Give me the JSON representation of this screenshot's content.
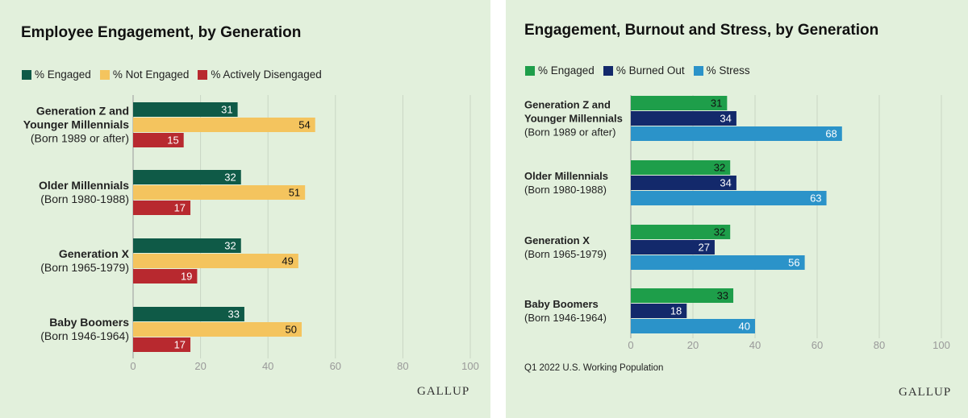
{
  "charts": [
    {
      "title": "Employee Engagement, by Generation",
      "logo": "GALLUP",
      "footnote": "",
      "chart_data": {
        "type": "bar",
        "orientation": "horizontal",
        "categories": [
          [
            "Generation Z and",
            "Younger Millennials",
            "(Born 1989 or after)"
          ],
          [
            "Older Millennials",
            "(Born 1980-1988)"
          ],
          [
            "Generation X",
            "(Born 1965-1979)"
          ],
          [
            "Baby Boomers",
            "(Born 1946-1964)"
          ]
        ],
        "series": [
          {
            "name": "% Engaged",
            "color": "#0f5a47",
            "label_color": "#ffffff",
            "values": [
              31,
              32,
              32,
              33
            ]
          },
          {
            "name": "% Not Engaged",
            "color": "#f4c45e",
            "label_color": "#111111",
            "values": [
              54,
              51,
              49,
              50
            ]
          },
          {
            "name": "% Actively Disengaged",
            "color": "#b8292f",
            "label_color": "#ffffff",
            "values": [
              15,
              17,
              19,
              17
            ]
          }
        ],
        "xlim": [
          0,
          100
        ],
        "xticks": [
          "0",
          "20",
          "40",
          "60",
          "80",
          "100"
        ],
        "grid": true,
        "legend": "top-left"
      }
    },
    {
      "title": "Engagement, Burnout and Stress, by Generation",
      "logo": "GALLUP",
      "footnote": "Q1 2022 U.S. Working Population",
      "chart_data": {
        "type": "bar",
        "orientation": "horizontal",
        "categories": [
          [
            "Generation Z and",
            "Younger Millennials",
            "(Born 1989 or after)"
          ],
          [
            "Older Millennials",
            "(Born 1980-1988)"
          ],
          [
            "Generation X",
            "(Born 1965-1979)"
          ],
          [
            "Baby Boomers",
            "(Born 1946-1964)"
          ]
        ],
        "series": [
          {
            "name": "% Engaged",
            "color": "#1e9e4a",
            "label_color": "#111111",
            "values": [
              31,
              32,
              32,
              33
            ]
          },
          {
            "name": "% Burned Out",
            "color": "#13296b",
            "label_color": "#ffffff",
            "values": [
              34,
              34,
              27,
              18
            ]
          },
          {
            "name": "% Stress",
            "color": "#2b93c9",
            "label_color": "#ffffff",
            "values": [
              68,
              63,
              56,
              40
            ]
          }
        ],
        "xlim": [
          0,
          100
        ],
        "xticks": [
          "0",
          "20",
          "40",
          "60",
          "80",
          "100"
        ],
        "grid": true,
        "legend": "top-left"
      }
    }
  ]
}
